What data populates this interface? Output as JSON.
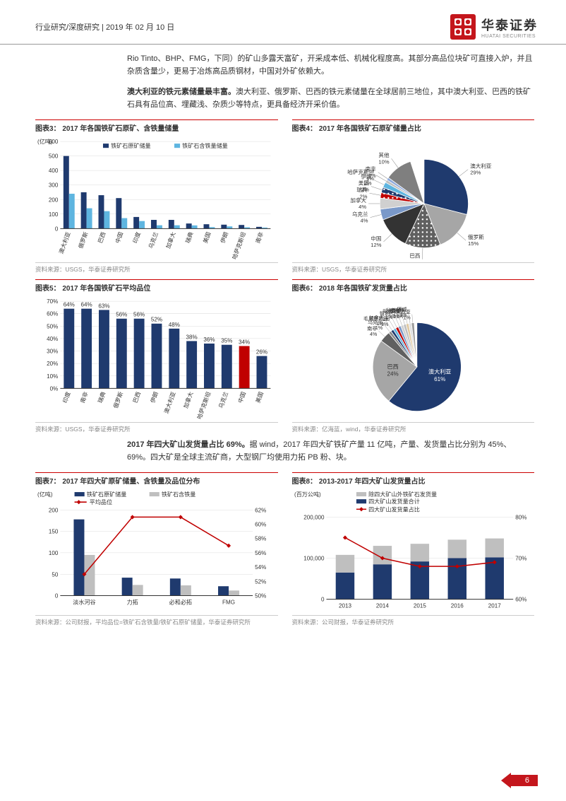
{
  "header": {
    "left": "行业研究/深度研究 | 2019 年 02 月 10 日",
    "brand_cn": "华泰证券",
    "brand_en": "HUATAI SECURITIES"
  },
  "para1": "Rio Tinto、BHP、FMG，下同）的矿山多露天富矿，开采成本低、机械化程度高。其部分高品位块矿可直接入炉，并且杂质含量少，更易于冶炼高品质钢材，中国对外矿依赖大。",
  "para2_bold": "澳大利亚的铁元素储量最丰富。",
  "para2_rest": "澳大利亚、俄罗斯、巴西的铁元素储量在全球居前三地位，其中澳大利亚、巴西的铁矿石具有品位高、埋藏浅、杂质少等特点，更具备经济开采价值。",
  "para3_bold": "2017 年四大矿山发货量占比 69%。",
  "para3_rest": "据 wind，2017 年四大矿铁矿产量 11 亿吨，产量、发货量占比分别为 45%、69%。四大矿是全球主流矿商，大型钢厂均使用力拓 PB 粉、块。",
  "ct3": {
    "title": "图表3：  2017 年各国铁矿石原矿、含铁量储量",
    "source": "资料来源：USGS，华泰证券研究所",
    "ylabel": "(亿吨)",
    "ymax": 600,
    "ytick": 100,
    "legend": [
      "铁矿石原矿储量",
      "铁矿石含铁量储量"
    ],
    "colors": [
      "#1f3a6e",
      "#5eb5e0"
    ],
    "cats": [
      "澳大利亚",
      "俄罗斯",
      "巴西",
      "中国",
      "印度",
      "乌克兰",
      "加拿大",
      "瑞典",
      "美国",
      "伊朗",
      "哈萨克斯坦",
      "南非"
    ],
    "s1": [
      500,
      250,
      230,
      210,
      80,
      60,
      60,
      35,
      30,
      27,
      25,
      12
    ],
    "s2": [
      240,
      140,
      120,
      72,
      52,
      23,
      23,
      22,
      10,
      15,
      9,
      7
    ]
  },
  "ct4": {
    "title": "图表4：  2017 年各国铁矿石原矿储量占比",
    "source": "资料来源：USGS，华泰证券研究所",
    "slices": [
      {
        "l": "澳大利亚",
        "v": 29,
        "c": "#1f3a6e",
        "p": "none"
      },
      {
        "l": "俄罗斯",
        "v": 15,
        "c": "#a6a6a6",
        "p": "none"
      },
      {
        "l": "巴西",
        "v": 13,
        "c": "#606060",
        "p": "dots-w"
      },
      {
        "l": "中国",
        "v": 12,
        "c": "#333333",
        "p": "none"
      },
      {
        "l": "乌克兰",
        "v": 4,
        "c": "#7a99c9",
        "p": "none"
      },
      {
        "l": "加拿大",
        "v": 4,
        "c": "#d0d0d0",
        "p": "none"
      },
      {
        "l": "瑞典",
        "v": 2,
        "c": "#c00000",
        "p": "dots-w"
      },
      {
        "l": "美国",
        "v": 2,
        "c": "#1f3a6e",
        "p": "dots-w"
      },
      {
        "l": "伊朗",
        "v": 2,
        "c": "#5eb5e0",
        "p": "none"
      },
      {
        "l": "哈萨克斯坦",
        "v": 1,
        "c": "#bfbfbf",
        "p": "none"
      },
      {
        "l": "南非",
        "v": 1,
        "c": "#8faadc",
        "p": "none"
      },
      {
        "l": "其他",
        "v": 10,
        "c": "#7f7f7f",
        "p": "none"
      }
    ]
  },
  "ct5": {
    "title": "图表5：  2017 年各国铁矿石平均品位",
    "source": "资料来源：USGS，华泰证券研究所",
    "ymax": 70,
    "ytick": 10,
    "cats": [
      "印度",
      "南非",
      "瑞典",
      "俄罗斯",
      "巴西",
      "伊朗",
      "澳大利亚",
      "加拿大",
      "哈萨克斯坦",
      "乌克兰",
      "中国",
      "美国"
    ],
    "vals": [
      64,
      64,
      63,
      56,
      56,
      52,
      48,
      38,
      36,
      35,
      34,
      26
    ],
    "labels": [
      "64%",
      "64%",
      "63%",
      "56%",
      "56%",
      "52%",
      "48%",
      "38%",
      "36%",
      "35%",
      "34%",
      "26%"
    ],
    "colors": [
      "#1f3a6e",
      "#1f3a6e",
      "#1f3a6e",
      "#1f3a6e",
      "#1f3a6e",
      "#1f3a6e",
      "#1f3a6e",
      "#1f3a6e",
      "#1f3a6e",
      "#1f3a6e",
      "#c00000",
      "#1f3a6e"
    ]
  },
  "ct6": {
    "title": "图表6：  2018 年各国铁矿发货量占比",
    "source": "资料来源：亿海蓝，wind，华泰证券研究所",
    "slices": [
      {
        "l": "澳大利亚",
        "v": 61,
        "c": "#1f3a6e"
      },
      {
        "l": "巴西",
        "v": 24,
        "c": "#a6a6a6"
      },
      {
        "l": "南非",
        "v": 4,
        "c": "#606060"
      },
      {
        "l": "乌克兰",
        "v": 1,
        "c": "#888888"
      },
      {
        "l": "加拿大",
        "v": 1,
        "c": "#1f3a6e"
      },
      {
        "l": "毛里塔尼亚",
        "v": 1,
        "c": "#5eb5e0"
      },
      {
        "l": "智利",
        "v": 1,
        "c": "#c00000"
      },
      {
        "l": "阿曼",
        "v": 1,
        "c": "#7a99c9"
      },
      {
        "l": "秘鲁",
        "v": 1,
        "c": "#d0d0d0"
      },
      {
        "l": "印度",
        "v": 1,
        "c": "#bfbfbf"
      },
      {
        "l": "伊朗",
        "v": 1,
        "c": "#dfc8a0"
      },
      {
        "l": "挪威",
        "v": 1,
        "c": "#e0e0e0"
      },
      {
        "l": "马来西亚",
        "v": 1,
        "c": "#999999"
      }
    ]
  },
  "ct7": {
    "title": "图表7：  2017 年四大矿原矿储量、含铁量及品位分布",
    "source": "资料来源：公司财报，平均品位=铁矿石含铁量/铁矿石原矿储量，华泰证券研究所",
    "y1label": "(亿吨)",
    "y1max": 200,
    "y1tick": 50,
    "y2max": 62,
    "y2min": 50,
    "y2tick": 2,
    "legend": [
      "铁矿石原矿储量",
      "铁矿石含铁量",
      "平均品位"
    ],
    "colors": {
      "bar1": "#1f3a6e",
      "bar2": "#bfbfbf",
      "line": "#c00000"
    },
    "cats": [
      "淡水河谷",
      "力拓",
      "必和必拓",
      "FMG"
    ],
    "bar1": [
      178,
      42,
      40,
      22
    ],
    "bar2": [
      95,
      25,
      24,
      12
    ],
    "line": [
      53,
      61,
      61,
      57
    ]
  },
  "ct8": {
    "title": "图表8：  2013-2017 年四大矿山发货量占比",
    "source": "资料来源：公司财报，华泰证券研究所",
    "y1label": "(百万公吨)",
    "y1max": 200000,
    "y1tick": 100000,
    "y2max": 80,
    "y2min": 60,
    "y2tick": 10,
    "legend": [
      "除四大矿山外铁矿石发货量",
      "四大矿山发货量合计",
      "四大矿山发货量占比"
    ],
    "colors": {
      "bar1": "#bfbfbf",
      "bar2": "#1f3a6e",
      "line": "#c00000"
    },
    "cats": [
      "2013",
      "2014",
      "2015",
      "2016",
      "2017"
    ],
    "bar_top": [
      108000,
      130000,
      135000,
      145000,
      148000
    ],
    "bar_bot": [
      65000,
      85000,
      92000,
      100000,
      102000
    ],
    "line": [
      75,
      70,
      68,
      68,
      69
    ]
  },
  "pagenum": "6"
}
